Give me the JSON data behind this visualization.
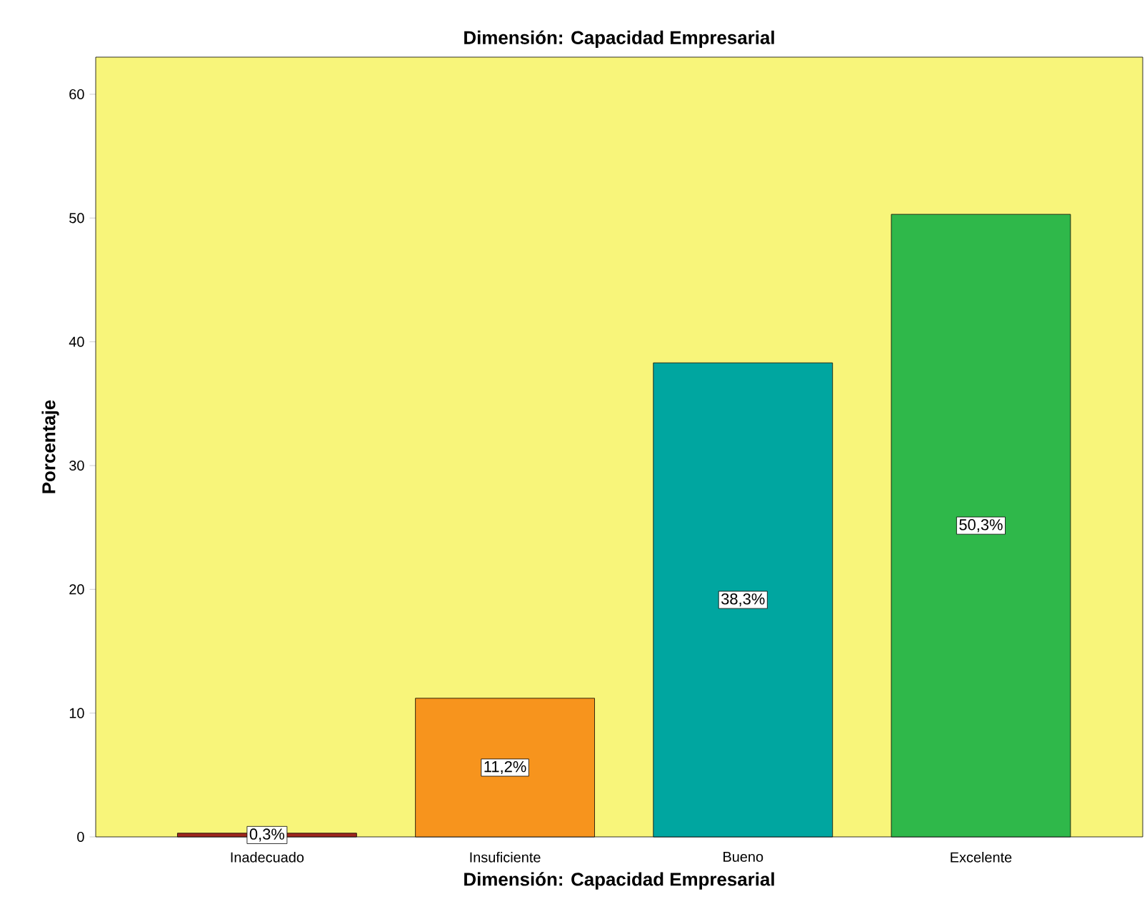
{
  "chart_data": {
    "type": "bar",
    "title": "Dimensión: Capacidad Empresarial",
    "xlabel": "Dimensión: Capacidad Empresarial",
    "ylabel": "Porcentaje",
    "categories": [
      "Inadecuado",
      "Insuficiente",
      "Bueno",
      "Excelente"
    ],
    "values": [
      0.3,
      11.2,
      38.3,
      50.3
    ],
    "colors": [
      "#a0281e",
      "#f7941d",
      "#00a6a0",
      "#2fb84a"
    ],
    "value_labels": [
      "0,3%",
      "11,2%",
      "38,3%",
      "50,3%"
    ],
    "ylim": [
      0,
      63
    ],
    "yticks": [
      0,
      10,
      20,
      30,
      40,
      50,
      60
    ],
    "grid": false
  }
}
